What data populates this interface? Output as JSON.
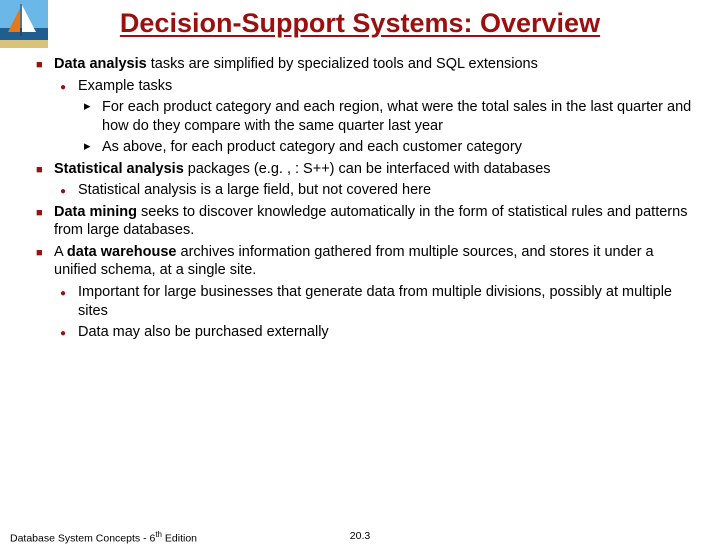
{
  "title": "Decision-Support Systems: Overview",
  "logo": {
    "sky_color": "#6bb8e8",
    "sand_color": "#d9c27a",
    "water_color": "#1e5f8f",
    "sail_color": "#e67817"
  },
  "bullets": [
    {
      "level": 1,
      "runs": [
        {
          "text": "Data analysis ",
          "bold": true
        },
        {
          "text": "tasks are simplified by specialized tools and SQL extensions",
          "bold": false
        }
      ]
    },
    {
      "level": 2,
      "runs": [
        {
          "text": "Example tasks",
          "bold": false
        }
      ]
    },
    {
      "level": 3,
      "runs": [
        {
          "text": "For each product category and each region, what were the total sales in the last quarter and how do they compare with the same quarter last year",
          "bold": false
        }
      ]
    },
    {
      "level": 3,
      "runs": [
        {
          "text": "As above, for each product category and each customer category",
          "bold": false
        }
      ]
    },
    {
      "level": 1,
      "runs": [
        {
          "text": "Statistical analysis ",
          "bold": true
        },
        {
          "text": "packages (e.g. , : S++) can be interfaced with databases",
          "bold": false
        }
      ]
    },
    {
      "level": 2,
      "runs": [
        {
          "text": "Statistical analysis is a large field, but not covered here",
          "bold": false
        }
      ]
    },
    {
      "level": 1,
      "runs": [
        {
          "text": "Data mining ",
          "bold": true
        },
        {
          "text": "seeks to discover knowledge automatically in the form of statistical rules and patterns from large databases.",
          "bold": false
        }
      ]
    },
    {
      "level": 1,
      "runs": [
        {
          "text": "A ",
          "bold": false
        },
        {
          "text": "data warehouse ",
          "bold": true
        },
        {
          "text": "archives information gathered from multiple sources, and stores it under a unified schema, at a single site.",
          "bold": false
        }
      ]
    },
    {
      "level": 2,
      "runs": [
        {
          "text": "Important for large businesses that generate data from multiple divisions, possibly at multiple sites",
          "bold": false
        }
      ]
    },
    {
      "level": 2,
      "runs": [
        {
          "text": "Data may also be purchased externally",
          "bold": false
        }
      ]
    }
  ],
  "footer": {
    "left_pre": "Database System Concepts - 6",
    "left_sup": "th",
    "left_post": " Edition",
    "mid": "20.3"
  },
  "style": {
    "title_color": "#9b0f0f",
    "bullet_color": "#9b0f0f",
    "text_color": "#000000",
    "background_color": "#ffffff",
    "title_fontsize": 27,
    "body_fontsize": 14.5,
    "footer_fontsize": 10.5
  }
}
